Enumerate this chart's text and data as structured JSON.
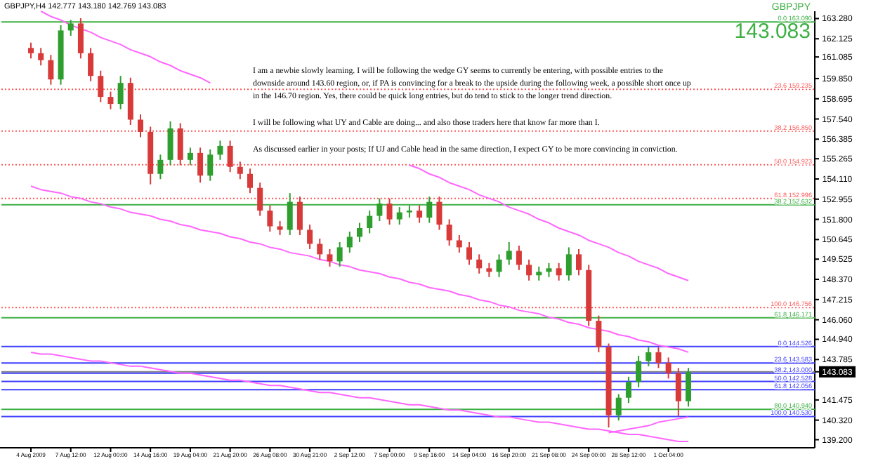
{
  "chart_data": {
    "type": "candlestick",
    "title": "GBPJPY,H4 142.777 143.180 142.769 143.083",
    "categories": [
      "4 Aug 2009",
      null,
      null,
      null,
      "7 Aug 12:00",
      null,
      null,
      null,
      "12 Aug 00:00",
      null,
      null,
      null,
      "14 Aug 16:00",
      null,
      null,
      null,
      "19 Aug 04:00",
      null,
      null,
      null,
      "21 Aug 20:00",
      null,
      null,
      null,
      "26 Aug 08:00",
      null,
      null,
      null,
      "30 Aug 21:00",
      null,
      null,
      null,
      "2 Sep 12:00",
      null,
      null,
      null,
      "7 Sep 00:00",
      null,
      null,
      null,
      "9 Sep 16:00",
      null,
      null,
      null,
      "14 Sep 04:00",
      null,
      null,
      null,
      "16 Sep 20:00",
      null,
      null,
      null,
      "21 Sep 08:00",
      null,
      null,
      null,
      "24 Sep 00:00",
      null,
      null,
      null,
      "28 Sep 12:00",
      null,
      null,
      null,
      "1 Oct 04:00",
      null,
      null
    ],
    "ohlc": [
      [
        161.6,
        161.9,
        161.0,
        161.3
      ],
      [
        161.3,
        161.6,
        160.6,
        160.9
      ],
      [
        160.9,
        161.2,
        159.5,
        159.8
      ],
      [
        159.8,
        162.9,
        159.5,
        162.6
      ],
      [
        162.6,
        163.2,
        162.3,
        163.0
      ],
      [
        163.0,
        163.3,
        161.0,
        161.3
      ],
      [
        161.3,
        161.6,
        159.7,
        160.0
      ],
      [
        160.0,
        160.3,
        158.5,
        158.8
      ],
      [
        158.8,
        159.1,
        158.1,
        158.4
      ],
      [
        158.4,
        160.0,
        158.1,
        159.6
      ],
      [
        159.6,
        159.9,
        157.2,
        157.5
      ],
      [
        157.5,
        157.8,
        156.5,
        156.8
      ],
      [
        156.8,
        157.1,
        153.8,
        154.4
      ],
      [
        154.4,
        155.5,
        154.1,
        155.2
      ],
      [
        155.2,
        157.4,
        154.9,
        157.0
      ],
      [
        157.0,
        157.3,
        154.9,
        155.2
      ],
      [
        155.2,
        155.9,
        154.9,
        155.6
      ],
      [
        155.6,
        155.9,
        153.9,
        154.3
      ],
      [
        154.3,
        155.8,
        154.0,
        155.5
      ],
      [
        155.5,
        156.3,
        155.2,
        156.0
      ],
      [
        156.0,
        156.3,
        154.5,
        154.8
      ],
      [
        154.8,
        155.1,
        154.1,
        154.4
      ],
      [
        154.4,
        154.7,
        153.3,
        153.6
      ],
      [
        153.6,
        153.9,
        152.0,
        152.3
      ],
      [
        152.3,
        152.6,
        151.1,
        151.4
      ],
      [
        151.4,
        151.7,
        150.9,
        151.2
      ],
      [
        151.2,
        153.3,
        150.9,
        152.8
      ],
      [
        152.8,
        153.1,
        150.9,
        151.2
      ],
      [
        151.2,
        151.5,
        150.1,
        150.4
      ],
      [
        150.4,
        150.7,
        149.5,
        149.8
      ],
      [
        149.8,
        150.1,
        149.1,
        149.4
      ],
      [
        149.4,
        150.5,
        149.1,
        150.2
      ],
      [
        150.2,
        151.1,
        149.9,
        150.8
      ],
      [
        150.8,
        151.6,
        150.5,
        151.3
      ],
      [
        151.3,
        152.3,
        151.0,
        152.0
      ],
      [
        152.0,
        153.0,
        151.7,
        152.7
      ],
      [
        152.7,
        153.0,
        151.5,
        151.8
      ],
      [
        151.8,
        152.5,
        151.5,
        152.2
      ],
      [
        152.2,
        152.6,
        151.9,
        152.3
      ],
      [
        152.3,
        152.6,
        151.6,
        151.9
      ],
      [
        151.9,
        153.1,
        151.6,
        152.8
      ],
      [
        152.8,
        153.1,
        151.2,
        151.5
      ],
      [
        151.5,
        151.8,
        150.3,
        150.6
      ],
      [
        150.6,
        150.9,
        149.9,
        150.2
      ],
      [
        150.2,
        150.5,
        149.2,
        149.5
      ],
      [
        149.5,
        149.8,
        148.7,
        149.0
      ],
      [
        149.0,
        149.3,
        148.5,
        148.8
      ],
      [
        148.8,
        149.8,
        148.5,
        149.5
      ],
      [
        149.5,
        150.5,
        149.2,
        150.0
      ],
      [
        150.0,
        150.3,
        148.9,
        149.2
      ],
      [
        149.2,
        149.5,
        148.3,
        148.6
      ],
      [
        148.6,
        149.1,
        148.3,
        148.8
      ],
      [
        148.8,
        149.3,
        148.5,
        149.0
      ],
      [
        149.0,
        149.3,
        148.3,
        148.6
      ],
      [
        148.6,
        150.2,
        148.3,
        149.8
      ],
      [
        149.8,
        150.1,
        148.6,
        148.9
      ],
      [
        148.9,
        149.2,
        145.7,
        146.0
      ],
      [
        146.0,
        146.3,
        144.2,
        144.5
      ],
      [
        144.5,
        144.7,
        139.9,
        140.6
      ],
      [
        140.6,
        141.8,
        140.3,
        141.6
      ],
      [
        141.6,
        142.8,
        141.3,
        142.5
      ],
      [
        142.5,
        144.0,
        142.2,
        143.7
      ],
      [
        143.7,
        144.5,
        143.4,
        144.2
      ],
      [
        144.2,
        144.5,
        143.3,
        143.6
      ],
      [
        143.6,
        143.9,
        142.7,
        143.0
      ],
      [
        143.0,
        143.3,
        140.53,
        141.4
      ],
      [
        141.4,
        143.3,
        141.1,
        143.083
      ]
    ],
    "colors": [
      "#d83a3a",
      "#d83a3a",
      "#d83a3a",
      "#2e9e2e",
      "#2e9e2e",
      "#d83a3a",
      "#d83a3a",
      "#d83a3a",
      "#d83a3a",
      "#2e9e2e",
      "#d83a3a",
      "#d83a3a",
      "#d83a3a",
      "#2e9e2e",
      "#2e9e2e",
      "#d83a3a",
      "#2e9e2e",
      "#d83a3a",
      "#2e9e2e",
      "#2e9e2e",
      "#d83a3a",
      "#d83a3a",
      "#d83a3a",
      "#d83a3a",
      "#d83a3a",
      "#d83a3a",
      "#2e9e2e",
      "#d83a3a",
      "#d83a3a",
      "#d83a3a",
      "#d83a3a",
      "#2e9e2e",
      "#2e9e2e",
      "#2e9e2e",
      "#2e9e2e",
      "#2e9e2e",
      "#d83a3a",
      "#2e9e2e",
      "#2e9e2e",
      "#d83a3a",
      "#2e9e2e",
      "#d83a3a",
      "#d83a3a",
      "#d83a3a",
      "#d83a3a",
      "#d83a3a",
      "#d83a3a",
      "#2e9e2e",
      "#2e9e2e",
      "#d83a3a",
      "#d83a3a",
      "#2e9e2e",
      "#2e9e2e",
      "#d83a3a",
      "#2e9e2e",
      "#d83a3a",
      "#d83a3a",
      "#d83a3a",
      "#d83a3a",
      "#2e9e2e",
      "#2e9e2e",
      "#2e9e2e",
      "#2e9e2e",
      "#d83a3a",
      "#d83a3a",
      "#d83a3a",
      "#2e9e2e"
    ],
    "series": [
      {
        "type": "line",
        "color": "#ff66ff",
        "values": [
          null,
          163.7,
          163.4,
          163.2,
          162.9,
          162.7,
          162.5,
          162.2,
          162.0,
          161.8,
          161.5,
          161.3,
          161.1,
          160.8,
          160.6,
          160.3,
          160.1,
          159.9,
          159.6,
          null,
          null,
          null,
          null,
          null,
          null,
          null,
          null,
          null,
          null,
          null,
          null,
          null,
          null,
          null,
          null,
          null,
          null,
          null,
          154.9,
          154.7,
          154.4,
          154.2,
          153.9,
          153.7,
          153.5,
          153.2,
          153.0,
          152.8,
          152.5,
          152.3,
          152.1,
          151.8,
          151.6,
          151.3,
          151.1,
          150.9,
          150.6,
          150.4,
          150.2,
          149.9,
          149.7,
          149.4,
          149.2,
          149.0,
          148.7,
          148.5,
          148.3
        ]
      },
      {
        "type": "line",
        "color": "#ff66ff",
        "values": [
          153.7,
          153.5,
          153.4,
          153.3,
          153.1,
          153.0,
          152.8,
          152.7,
          152.5,
          152.4,
          152.2,
          152.1,
          152.0,
          151.8,
          151.7,
          151.5,
          151.4,
          151.2,
          151.1,
          151.0,
          150.8,
          150.7,
          150.5,
          150.4,
          150.2,
          150.1,
          149.9,
          149.8,
          149.7,
          149.5,
          149.4,
          149.2,
          149.1,
          148.9,
          148.8,
          148.7,
          148.5,
          148.4,
          148.2,
          148.1,
          147.9,
          147.8,
          147.7,
          147.5,
          147.4,
          147.2,
          147.1,
          146.9,
          146.8,
          146.6,
          146.5,
          146.4,
          146.2,
          146.1,
          145.9,
          145.8,
          145.6,
          145.5,
          145.4,
          145.2,
          145.1,
          144.9,
          144.8,
          144.6,
          144.5,
          144.4,
          144.2
        ]
      },
      {
        "type": "line",
        "color": "#ff66ff",
        "values": [
          144.2,
          144.1,
          144.1,
          144.0,
          143.9,
          143.8,
          143.7,
          143.7,
          143.6,
          143.5,
          143.4,
          143.4,
          143.3,
          143.2,
          143.1,
          143.0,
          143.0,
          142.9,
          142.8,
          142.7,
          142.6,
          142.6,
          142.5,
          142.4,
          142.3,
          142.3,
          142.2,
          142.1,
          142.0,
          141.9,
          141.9,
          141.8,
          141.7,
          141.6,
          141.6,
          141.5,
          141.4,
          141.3,
          141.2,
          141.2,
          141.1,
          141.0,
          140.9,
          140.9,
          140.8,
          140.7,
          140.6,
          140.5,
          140.5,
          140.4,
          140.3,
          140.2,
          140.2,
          140.1,
          140.0,
          139.9,
          139.8,
          139.8,
          139.7,
          139.6,
          139.5,
          139.5,
          139.4,
          139.3,
          139.2,
          139.1,
          139.1
        ]
      },
      {
        "type": "line",
        "color": "#ff66ff",
        "values": [
          null,
          null,
          null,
          null,
          null,
          null,
          null,
          null,
          null,
          null,
          null,
          null,
          null,
          null,
          null,
          null,
          null,
          null,
          null,
          null,
          null,
          null,
          null,
          null,
          null,
          null,
          null,
          null,
          null,
          null,
          null,
          null,
          null,
          null,
          null,
          null,
          null,
          null,
          null,
          null,
          null,
          null,
          null,
          null,
          null,
          null,
          null,
          null,
          null,
          null,
          null,
          null,
          null,
          null,
          null,
          null,
          null,
          null,
          139.6,
          139.7,
          139.8,
          139.9,
          140.0,
          140.2,
          140.3,
          140.4,
          140.5
        ]
      }
    ],
    "ylim": [
      138.9,
      163.7
    ],
    "yticks": [
      {
        "value": 163.28,
        "label": "163.280"
      },
      {
        "value": 162.125,
        "label": "162.125"
      },
      {
        "value": 161.085,
        "label": "161.085"
      },
      {
        "value": 159.85,
        "label": "159.850"
      },
      {
        "value": 158.695,
        "label": "158.695"
      },
      {
        "value": 157.54,
        "label": "157.540"
      },
      {
        "value": 156.385,
        "label": "156.385"
      },
      {
        "value": 155.265,
        "label": "155.265"
      },
      {
        "value": 154.11,
        "label": "154.110"
      },
      {
        "value": 152.955,
        "label": "152.955"
      },
      {
        "value": 151.8,
        "label": "151.800"
      },
      {
        "value": 150.645,
        "label": "150.645"
      },
      {
        "value": 149.525,
        "label": "149.525"
      },
      {
        "value": 148.37,
        "label": "148.370"
      },
      {
        "value": 147.215,
        "label": "147.215"
      },
      {
        "value": 146.06,
        "label": "146.060"
      },
      {
        "value": 144.94,
        "label": "144.940"
      },
      {
        "value": 143.785,
        "label": "143.785"
      },
      {
        "value": 143.083,
        "label": "143.083"
      },
      {
        "value": 141.475,
        "label": "141.475"
      },
      {
        "value": 140.32,
        "label": "140.320"
      },
      {
        "value": 139.2,
        "label": "139.200"
      }
    ],
    "ref_lines": [
      {
        "axis": "y",
        "value": 163.09,
        "label": "0.0 163.090",
        "color": "#3cb043",
        "line_style": "solid"
      },
      {
        "axis": "y",
        "value": 159.235,
        "label": "23.6 159.235",
        "color": "#ff5a5a",
        "line_style": "dotted"
      },
      {
        "axis": "y",
        "value": 156.85,
        "label": "38.2 156.850",
        "color": "#ff5a5a",
        "line_style": "dotted"
      },
      {
        "axis": "y",
        "value": 154.923,
        "label": "50.0 154.923",
        "color": "#ff5a5a",
        "line_style": "dotted"
      },
      {
        "axis": "y",
        "value": 152.996,
        "label": "61.8 152.996",
        "color": "#ff5a5a",
        "line_style": "dotted"
      },
      {
        "axis": "y",
        "value": 152.632,
        "label": "38.2 152.632",
        "color": "#3cb043",
        "line_style": "solid"
      },
      {
        "axis": "y",
        "value": 146.756,
        "label": "100.0 146.756",
        "color": "#ff5a5a",
        "line_style": "dotted"
      },
      {
        "axis": "y",
        "value": 146.171,
        "label": "61.8 146.171",
        "color": "#3cb043",
        "line_style": "solid"
      },
      {
        "axis": "y",
        "value": 144.526,
        "label": "0.0 144.526",
        "color": "#4040ff",
        "line_style": "solid"
      },
      {
        "axis": "y",
        "value": 143.583,
        "label": "23.6 143.583",
        "color": "#4040ff",
        "line_style": "solid"
      },
      {
        "axis": "y",
        "value": 143.083,
        "color": "#808080",
        "line_style": "solid"
      },
      {
        "axis": "y",
        "value": 143.0,
        "label": "38.2 143.000",
        "color": "#4040ff",
        "line_style": "solid"
      },
      {
        "axis": "y",
        "value": 142.528,
        "label": "50.0 142.528",
        "color": "#4040ff",
        "line_style": "solid"
      },
      {
        "axis": "y",
        "value": 142.056,
        "label": "61.8 142.056",
        "color": "#4040ff",
        "line_style": "solid"
      },
      {
        "axis": "y",
        "value": 140.94,
        "label": "80.0 140.940",
        "color": "#3cb043",
        "line_style": "solid"
      },
      {
        "axis": "y",
        "value": 140.53,
        "label": "100.0 140.530",
        "color": "#4040ff",
        "line_style": "solid"
      }
    ],
    "annotations": [
      "GBPJPY",
      "143.083",
      "I am a newbie slowly learning. I will be following the wedge GY seems to currently be entering, with possible entries to the downside around 143.60 region, or, if PA is convincing for a break to the upside during the following week, a possible short once up in the 146.70 region. Yes, there could be quick long entries, but do tend to stick to the longer trend direction.",
      "I will be following what UY and Cable are doing... and also those traders here that know far more than I.",
      "As discussed earlier in your posts; If UJ and Cable head in the same direction, I expect GY to be more convincing in conviction."
    ]
  }
}
